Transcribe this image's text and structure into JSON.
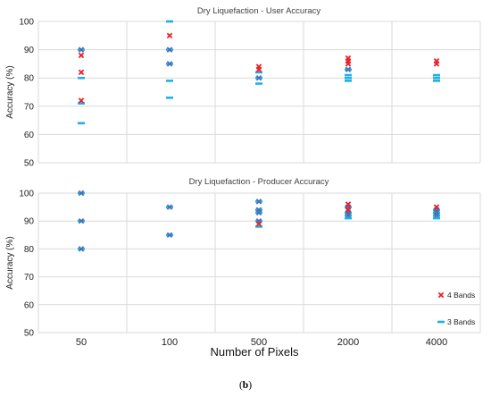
{
  "caption": {
    "open": "(",
    "letter": "b",
    "close": ")"
  },
  "shared_xlabel": "Number of Pixels",
  "series_colors": {
    "4 Bands": "#e8202a",
    "3 Bands": "#1fb0e6",
    "overlap": "#4a6fb5"
  },
  "chart_data": [
    {
      "type": "scatter",
      "title": "Dry Liquefaction - User Accuracy",
      "xlabel": "",
      "ylabel": "Accuracy (%)",
      "categories": [
        "50",
        "100",
        "500",
        "2000",
        "4000"
      ],
      "ylim": [
        50,
        100
      ],
      "yticks": [
        50,
        60,
        70,
        80,
        90,
        100
      ],
      "grid": true,
      "show_xticklabels": false,
      "legend": null,
      "series": [
        {
          "name": "4 Bands",
          "marker": "x",
          "points": [
            [
              0,
              90
            ],
            [
              0,
              88
            ],
            [
              0,
              82
            ],
            [
              0,
              72
            ],
            [
              1,
              95
            ],
            [
              1,
              90
            ],
            [
              1,
              85
            ],
            [
              2,
              84
            ],
            [
              2,
              83
            ],
            [
              2,
              80
            ],
            [
              3,
              87
            ],
            [
              3,
              86
            ],
            [
              3,
              85
            ],
            [
              3,
              83
            ],
            [
              4,
              86
            ],
            [
              4,
              85
            ]
          ]
        },
        {
          "name": "3 Bands",
          "marker": "dash",
          "points": [
            [
              0,
              90
            ],
            [
              0,
              80
            ],
            [
              0,
              71
            ],
            [
              0,
              64
            ],
            [
              1,
              100
            ],
            [
              1,
              90
            ],
            [
              1,
              85
            ],
            [
              1,
              79
            ],
            [
              1,
              73
            ],
            [
              2,
              82
            ],
            [
              2,
              80
            ],
            [
              2,
              78
            ],
            [
              3,
              83
            ],
            [
              3,
              81
            ],
            [
              3,
              80
            ],
            [
              3,
              79
            ],
            [
              4,
              81
            ],
            [
              4,
              80
            ],
            [
              4,
              79
            ]
          ]
        }
      ]
    },
    {
      "type": "scatter",
      "title": "Dry Liquefaction - Producer Accuracy",
      "xlabel": "Number of Pixels",
      "ylabel": "Accuracy (%)",
      "categories": [
        "50",
        "100",
        "500",
        "2000",
        "4000"
      ],
      "ylim": [
        50,
        100
      ],
      "yticks": [
        50,
        60,
        70,
        80,
        90,
        100
      ],
      "grid": true,
      "show_xticklabels": true,
      "legend": "bottom-right",
      "series": [
        {
          "name": "4 Bands",
          "marker": "x",
          "points": [
            [
              0,
              100
            ],
            [
              0,
              90
            ],
            [
              0,
              80
            ],
            [
              1,
              95
            ],
            [
              1,
              85
            ],
            [
              2,
              97
            ],
            [
              2,
              94
            ],
            [
              2,
              93
            ],
            [
              2,
              90
            ],
            [
              2,
              89
            ],
            [
              3,
              96
            ],
            [
              3,
              95
            ],
            [
              3,
              94
            ],
            [
              3,
              93
            ],
            [
              3,
              92
            ],
            [
              4,
              95
            ],
            [
              4,
              94
            ],
            [
              4,
              93
            ],
            [
              4,
              92
            ]
          ]
        },
        {
          "name": "3 Bands",
          "marker": "dash",
          "points": [
            [
              0,
              100
            ],
            [
              0,
              90
            ],
            [
              0,
              80
            ],
            [
              1,
              95
            ],
            [
              1,
              85
            ],
            [
              2,
              97
            ],
            [
              2,
              94
            ],
            [
              2,
              93
            ],
            [
              2,
              90
            ],
            [
              2,
              88
            ],
            [
              3,
              95
            ],
            [
              3,
              93
            ],
            [
              3,
              92
            ],
            [
              3,
              91
            ],
            [
              4,
              94
            ],
            [
              4,
              93
            ],
            [
              4,
              92
            ],
            [
              4,
              91
            ]
          ]
        }
      ]
    }
  ]
}
